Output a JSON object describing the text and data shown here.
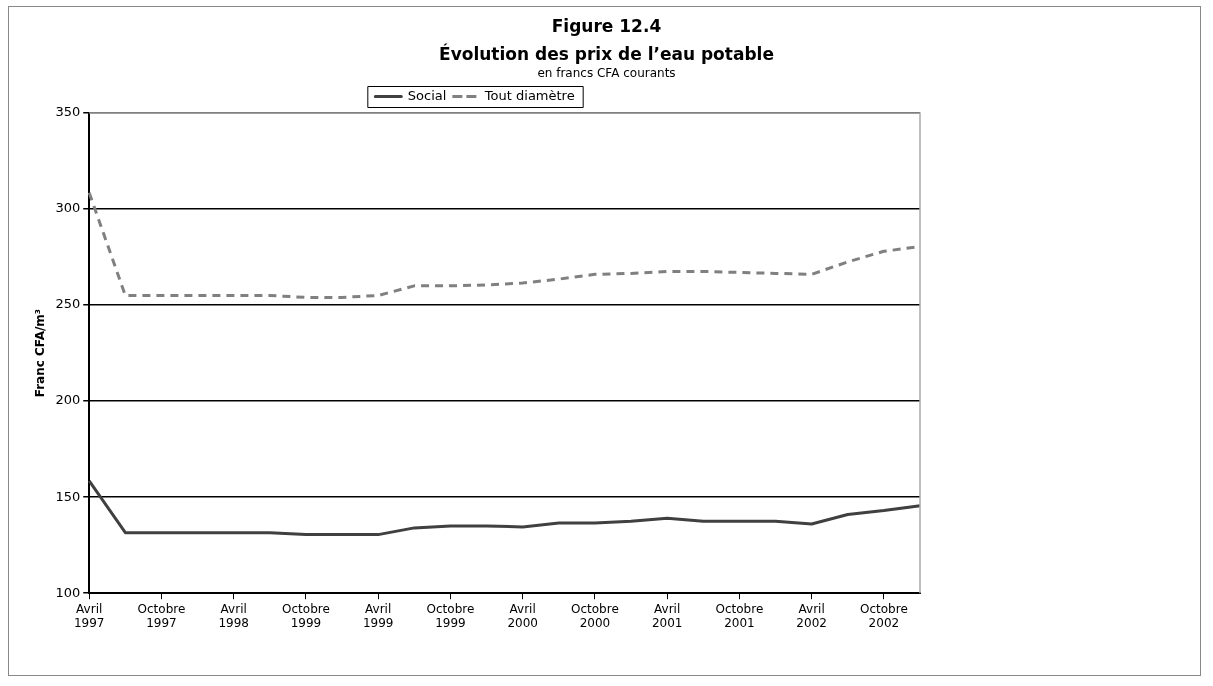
{
  "chart_data": {
    "type": "line",
    "title": "Figure 12.4\nÉvolution des prix de l’eau potable",
    "subtitle": "en francs CFA courants",
    "ylabel": "Franc CFA/m³",
    "categories": [
      "Avril 1997",
      null,
      "Octobre 1997",
      null,
      "Avril 1998",
      null,
      "Octobre 1999",
      null,
      "Avril 1999",
      null,
      "Octobre 1999",
      null,
      "Avril 2000",
      null,
      "Octobre 2000",
      null,
      "Avril 2001",
      null,
      "Octobre 2001",
      null,
      "Avril 2002",
      null,
      "Octobre 2002",
      null
    ],
    "series": [
      {
        "name": "Social",
        "color": "#404040",
        "line_style": "solid",
        "values": [
          158.5,
          131.5,
          131.5,
          131.5,
          131.5,
          131.5,
          130.5,
          130.5,
          130.5,
          134,
          135,
          135,
          134.5,
          136.5,
          136.5,
          137.5,
          139,
          137.5,
          137.5,
          137.5,
          136,
          141,
          143,
          145.5
        ]
      },
      {
        "name": "Tout diamètre",
        "color": "#808080",
        "line_style": "dashed",
        "values": [
          308.5,
          255,
          255,
          255,
          255,
          255,
          254,
          254,
          255,
          260,
          260,
          260.5,
          261.5,
          263.5,
          266,
          266.5,
          267.5,
          267.5,
          267,
          266.5,
          266,
          272.5,
          278,
          280.5
        ]
      }
    ],
    "ylim": [
      100,
      350
    ],
    "yticks": [
      100,
      150,
      200,
      250,
      300,
      350
    ],
    "grid": "y",
    "legend": "top",
    "marker": "none"
  }
}
